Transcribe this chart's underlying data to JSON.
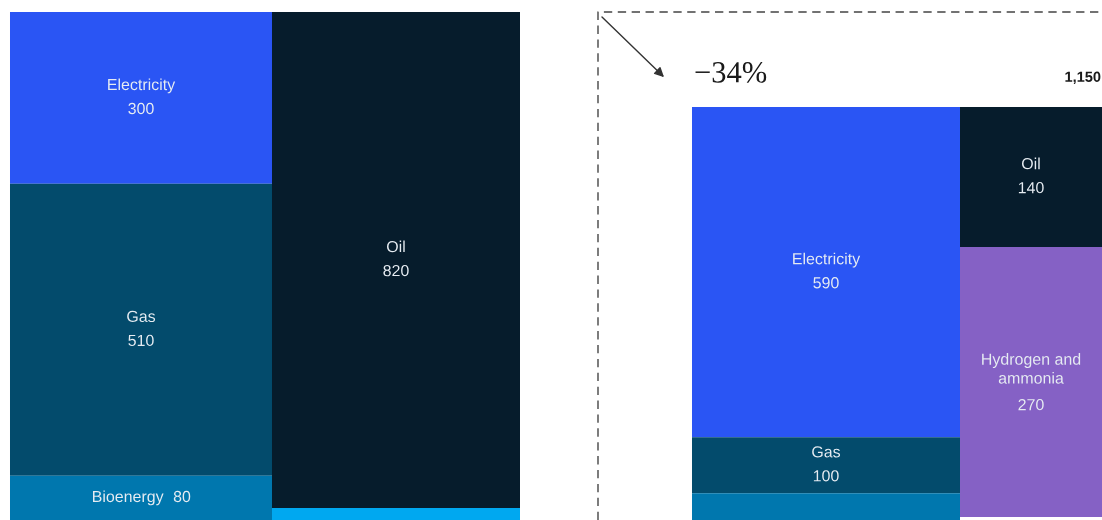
{
  "chart_data": [
    {
      "type": "other",
      "categories": [
        "Electricity",
        "Gas",
        "Bioenergy",
        "Oil",
        null
      ],
      "values": [
        300,
        510,
        80,
        820,
        null
      ],
      "colors": [
        "#2a55f4",
        "#034b6c",
        "#0077ae",
        "#061c2c",
        "#00a8f0"
      ],
      "data_labels": true
    },
    {
      "type": "other",
      "categories": [
        "Electricity",
        "Gas",
        null,
        "Oil",
        "Hydrogen and ammonia"
      ],
      "values": [
        590,
        100,
        null,
        140,
        270
      ],
      "colors": [
        "#2a55f4",
        "#034b6c",
        "#0077ae",
        "#061c2c",
        "#8561c5"
      ],
      "data_labels": true,
      "annotations": [
        "−34%",
        "1,150"
      ]
    }
  ]
}
